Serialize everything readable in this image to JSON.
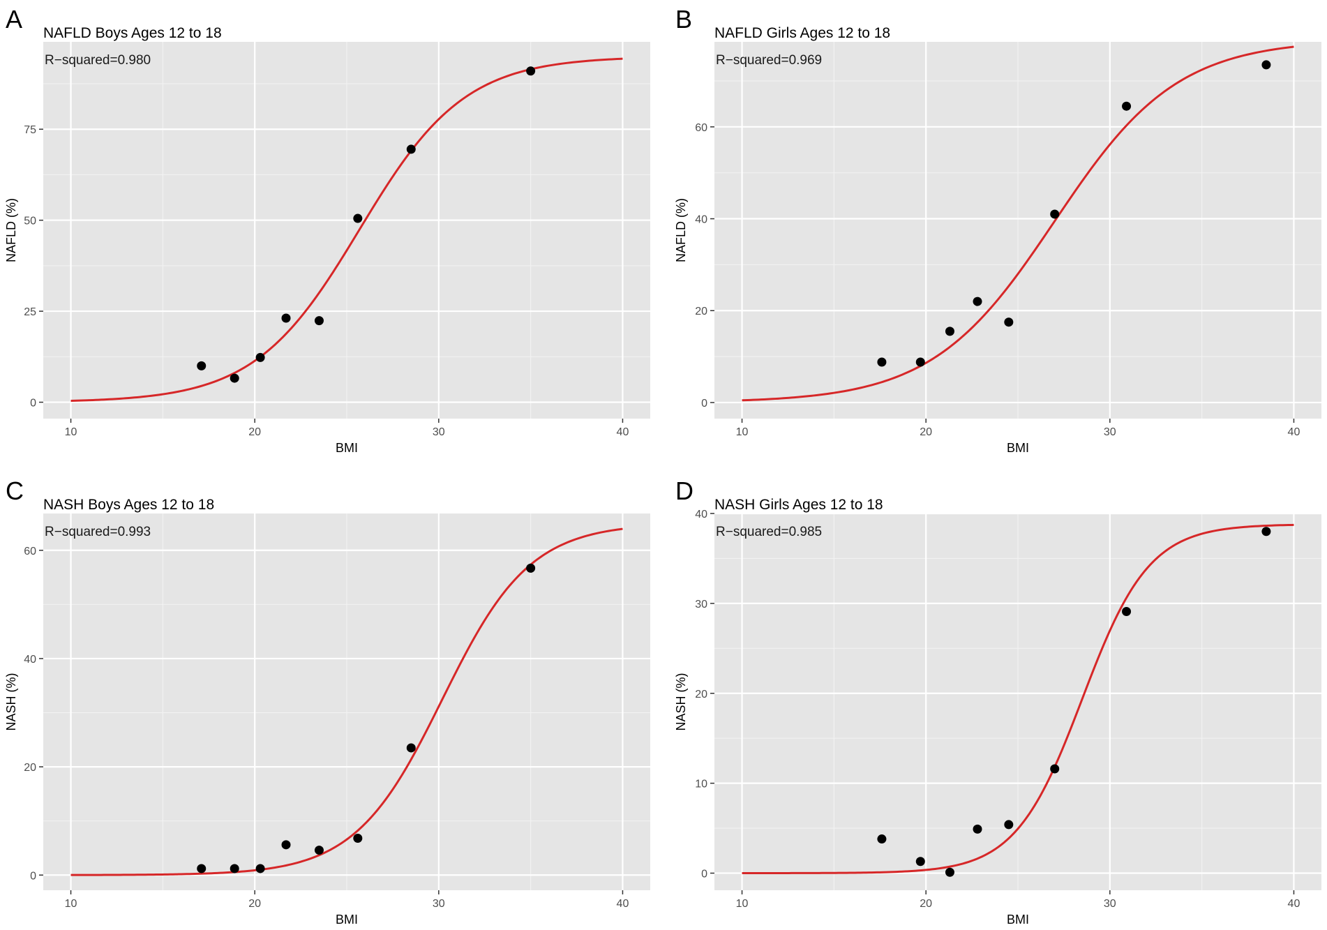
{
  "figure": {
    "description_free": true
  },
  "colors": {
    "panel_bg": "#e5e5e5",
    "curve": "#d62728",
    "point": "#000000"
  },
  "chart_data": [
    {
      "type": "scatter",
      "letter": "A",
      "title": "NAFLD Boys Ages 12 to 18",
      "annotation": "R−squared=0.980",
      "xlabel": "BMI",
      "ylabel": "NAFLD (%)",
      "xlim": [
        8.5,
        41.5
      ],
      "ylim": [
        -4.5,
        99
      ],
      "xticks": [
        10,
        20,
        30,
        40
      ],
      "yticks": [
        0,
        25,
        50,
        75
      ],
      "x": [
        17.1,
        18.9,
        20.3,
        21.7,
        23.5,
        25.6,
        28.5,
        35.0
      ],
      "y": [
        10.0,
        6.6,
        12.3,
        23.1,
        22.4,
        50.5,
        69.5,
        91.0
      ],
      "fit": {
        "kind": "logistic",
        "L": 95.0,
        "x0": 25.7,
        "k": 0.35,
        "xrange": [
          10,
          40
        ]
      }
    },
    {
      "type": "scatter",
      "letter": "B",
      "title": "NAFLD Girls Ages 12 to 18",
      "annotation": "R−squared=0.969",
      "xlabel": "BMI",
      "ylabel": "NAFLD (%)",
      "xlim": [
        8.5,
        41.5
      ],
      "ylim": [
        -3.5,
        78.5
      ],
      "xticks": [
        10,
        20,
        30,
        40
      ],
      "yticks": [
        0,
        20,
        40,
        60
      ],
      "x": [
        17.6,
        19.7,
        21.3,
        22.8,
        24.5,
        27.0,
        30.9,
        38.5
      ],
      "y": [
        8.8,
        8.8,
        15.5,
        22.0,
        17.5,
        41.0,
        64.5,
        73.5
      ],
      "fit": {
        "kind": "logistic",
        "L": 79.0,
        "x0": 27.0,
        "k": 0.3,
        "xrange": [
          10,
          40
        ]
      }
    },
    {
      "type": "scatter",
      "letter": "C",
      "title": "NASH Boys Ages 12 to 18",
      "annotation": "R−squared=0.993",
      "xlabel": "BMI",
      "ylabel": "NASH (%)",
      "xlim": [
        8.5,
        41.5
      ],
      "ylim": [
        -2.8,
        66.8
      ],
      "xticks": [
        10,
        20,
        30,
        40
      ],
      "yticks": [
        0,
        20,
        40,
        60
      ],
      "x": [
        17.1,
        18.9,
        20.3,
        21.7,
        23.5,
        25.6,
        28.5,
        35.0
      ],
      "y": [
        1.2,
        1.2,
        1.2,
        5.6,
        4.6,
        6.8,
        23.5,
        56.7
      ],
      "fit": {
        "kind": "logistic",
        "L": 65.0,
        "x0": 30.2,
        "k": 0.42,
        "xrange": [
          10,
          40
        ]
      }
    },
    {
      "type": "scatter",
      "letter": "D",
      "title": "NASH Girls Ages 12 to 18",
      "annotation": "R−squared=0.985",
      "xlabel": "BMI",
      "ylabel": "NASH (%)",
      "xlim": [
        8.5,
        41.5
      ],
      "ylim": [
        -1.9,
        40.0
      ],
      "xticks": [
        10,
        20,
        30,
        40
      ],
      "yticks": [
        0,
        10,
        20,
        30,
        40
      ],
      "x": [
        17.6,
        19.7,
        21.3,
        22.8,
        24.5,
        27.0,
        30.9,
        38.5
      ],
      "y": [
        3.8,
        1.3,
        0.1,
        4.9,
        5.4,
        11.6,
        29.1,
        38.0
      ],
      "fit": {
        "kind": "logistic",
        "L": 38.8,
        "x0": 28.5,
        "k": 0.55,
        "xrange": [
          10,
          40
        ]
      }
    }
  ]
}
